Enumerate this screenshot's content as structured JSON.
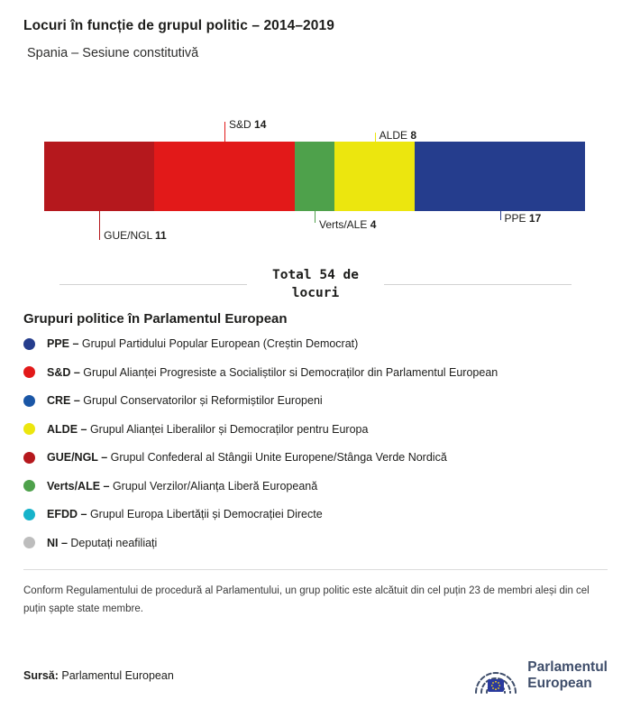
{
  "header": {
    "title": "Locuri în funcție de grupul politic – 2014–2019",
    "subtitle": "Spania – Sesiune constitutivă"
  },
  "chart_data": {
    "type": "bar",
    "title": "Locuri în funcție de grupul politic – 2014–2019",
    "subtitle": "Spania – Sesiune constitutivă",
    "total_seats": 54,
    "total_label": "Total 54 de locuri",
    "segments": [
      {
        "group": "GUE/NGL",
        "seats": 11,
        "color": "#b5181d",
        "label_position": "below-far"
      },
      {
        "group": "S&D",
        "seats": 14,
        "color": "#e21919",
        "label_position": "above-far"
      },
      {
        "group": "Verts/ALE",
        "seats": 4,
        "color": "#4ea14b",
        "label_position": "below-mid"
      },
      {
        "group": "ALDE",
        "seats": 8,
        "color": "#ece60e",
        "label_position": "above-near"
      },
      {
        "group": "PPE",
        "seats": 17,
        "color": "#253d8d",
        "label_position": "below-near"
      }
    ]
  },
  "legend": {
    "heading": "Grupuri politice în Parlamentul European",
    "items": [
      {
        "abbr": "PPE",
        "text": "Grupul Partidului Popular European (Creștin Democrat)",
        "color": "#253d8d"
      },
      {
        "abbr": "S&D",
        "text": "Grupul Alianței Progresiste a Socialiștilor si Democraților din Parlamentul European",
        "color": "#e21919"
      },
      {
        "abbr": "CRE",
        "text": "Grupul Conservatorilor și Reformiștilor Europeni",
        "color": "#1a56a6"
      },
      {
        "abbr": "ALDE",
        "text": "Grupul Alianței Liberalilor și Democraților pentru Europa",
        "color": "#ece60e"
      },
      {
        "abbr": "GUE/NGL",
        "text": "Grupul Confederal al Stângii Unite Europene/Stânga Verde Nordică",
        "color": "#b5181d"
      },
      {
        "abbr": "Verts/ALE",
        "text": "Grupul Verzilor/Alianța Liberă Europeană",
        "color": "#4ea14b"
      },
      {
        "abbr": "EFDD",
        "text": "Grupul Europa Libertății și Democrației Directe",
        "color": "#17b3ca"
      },
      {
        "abbr": "NI",
        "text": "Deputați neafiliați",
        "color": "#bdbdbd"
      }
    ]
  },
  "footnote": "Conform Regulamentului de procedură al Parlamentului, un grup politic este alcătuit din cel puțin 23 de membri aleși din cel puțin șapte state membre.",
  "source": {
    "label": "Sursă:",
    "text": "Parlamentul European"
  },
  "logo": {
    "line1": "Parlamentul",
    "line2": "European"
  }
}
